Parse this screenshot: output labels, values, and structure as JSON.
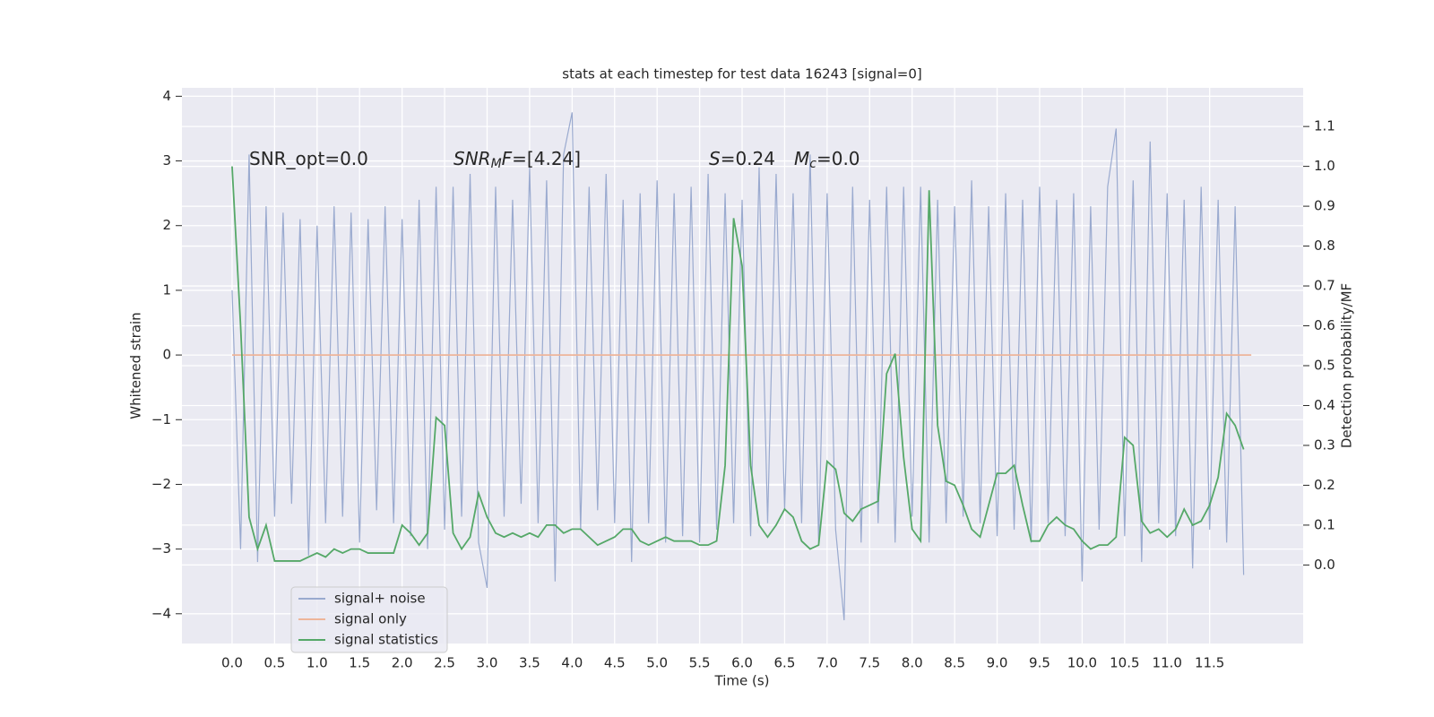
{
  "chart_data": {
    "type": "line",
    "title": "stats at each timestep for test data 16243 [signal=0]",
    "xlabel": "Time (s)",
    "ylabel": "Whitened strain",
    "y2label": "Detection probability/MF",
    "xlim": [
      -0.59,
      12.6
    ],
    "ylim": [
      -4.46,
      4.13
    ],
    "y2lim": [
      -0.197,
      1.197
    ],
    "xticks": [
      {
        "value": 0,
        "label": "0.0"
      },
      0.5,
      {
        "value": 1,
        "label": "1.0"
      },
      1.5,
      {
        "value": 2,
        "label": "2.0"
      },
      2.5,
      {
        "value": 3,
        "label": "3.0"
      },
      3.5,
      {
        "value": 4,
        "label": "4.0"
      },
      4.5,
      {
        "value": 5,
        "label": "5.0"
      },
      5.5,
      {
        "value": 6,
        "label": "6.0"
      },
      6.5,
      {
        "value": 7,
        "label": "7.0"
      },
      7.5,
      {
        "value": 8,
        "label": "8.0"
      },
      8.5,
      {
        "value": 9,
        "label": "9.0"
      },
      9.5,
      {
        "value": 10,
        "label": "10.0"
      },
      10.5,
      {
        "value": 11,
        "label": "11.0"
      },
      11.5
    ],
    "yticks": [
      {
        "value": -4,
        "label": "−4"
      },
      {
        "value": -3,
        "label": "−3"
      },
      {
        "value": -2,
        "label": "−2"
      },
      {
        "value": -1,
        "label": "−1"
      },
      0,
      1,
      2,
      3,
      4
    ],
    "y2ticks": [
      {
        "value": 0,
        "label": "0.0"
      },
      0.1,
      0.2,
      0.3,
      0.4,
      0.5,
      0.6,
      0.7,
      0.8,
      0.9,
      {
        "value": 1,
        "label": "1.0"
      },
      1.1
    ],
    "grid": true,
    "legend": "lower left",
    "annotations": [
      [
        {
          "text": "SNR_opt=0.0"
        }
      ],
      [
        {
          "text": "SNR",
          "italic": true
        },
        {
          "text": "M",
          "italic": true,
          "sub": true
        },
        {
          "text": "F",
          "italic": true
        },
        {
          "text": "=[4.24]"
        }
      ],
      [
        {
          "text": "S",
          "italic": true
        },
        {
          "text": "=0.24"
        }
      ],
      [
        {
          "text": "M",
          "italic": true
        },
        {
          "text": "c",
          "italic": true,
          "sub": true
        },
        {
          "text": "=0.0"
        }
      ]
    ],
    "series": [
      {
        "name": "signal+ noise",
        "color": "#9aaacf",
        "x": [
          0,
          0.1,
          0.2,
          0.3,
          0.4,
          0.5,
          0.6,
          0.7,
          0.8,
          0.9,
          1,
          1.1,
          1.2,
          1.3,
          1.4,
          1.5,
          1.6,
          1.7,
          1.8,
          1.9,
          2,
          2.1,
          2.2,
          2.3,
          2.4,
          2.5,
          2.6,
          2.7,
          2.8,
          2.9,
          3,
          3.1,
          3.2,
          3.3,
          3.4,
          3.5,
          3.6,
          3.7,
          3.8,
          3.9,
          4,
          4.1,
          4.2,
          4.3,
          4.4,
          4.5,
          4.6,
          4.7,
          4.8,
          4.9,
          5,
          5.1,
          5.2,
          5.3,
          5.4,
          5.5,
          5.6,
          5.7,
          5.8,
          5.9,
          6,
          6.1,
          6.2,
          6.3,
          6.4,
          6.5,
          6.6,
          6.7,
          6.8,
          6.9,
          7,
          7.1,
          7.2,
          7.3,
          7.4,
          7.5,
          7.6,
          7.7,
          7.8,
          7.9,
          8,
          8.1,
          8.2,
          8.3,
          8.4,
          8.5,
          8.6,
          8.7,
          8.8,
          8.9,
          9,
          9.1,
          9.2,
          9.3,
          9.4,
          9.5,
          9.6,
          9.7,
          9.8,
          9.9,
          10,
          10.1,
          10.2,
          10.3,
          10.4,
          10.5,
          10.6,
          10.7,
          10.8,
          10.9,
          11,
          11.1,
          11.2,
          11.3,
          11.4,
          11.5,
          11.6,
          11.7,
          11.8,
          11.9
        ],
        "values": [
          1.0,
          -3.0,
          3.1,
          -3.2,
          2.3,
          -2.5,
          2.2,
          -2.3,
          2.1,
          -3.1,
          2.0,
          -2.6,
          2.3,
          -2.5,
          2.2,
          -2.9,
          2.1,
          -2.4,
          2.3,
          -2.6,
          2.1,
          -2.8,
          2.4,
          -3.0,
          2.6,
          -2.7,
          2.6,
          -2.5,
          2.8,
          -2.9,
          -3.6,
          2.6,
          -2.5,
          2.4,
          -2.3,
          2.9,
          -2.6,
          2.7,
          -3.5,
          3.1,
          3.75,
          -2.7,
          2.6,
          -2.4,
          2.8,
          -2.6,
          2.4,
          -3.2,
          2.5,
          -2.6,
          2.7,
          -2.9,
          2.5,
          -2.8,
          2.6,
          -2.9,
          2.8,
          -2.7,
          2.5,
          -2.6,
          2.4,
          -2.8,
          2.9,
          -2.6,
          2.8,
          -2.4,
          2.5,
          -2.6,
          3.1,
          -2.9,
          2.5,
          -2.7,
          -4.1,
          2.6,
          -2.9,
          2.4,
          -2.6,
          2.6,
          -2.9,
          2.6,
          -2.5,
          2.6,
          -2.9,
          2.4,
          -2.6,
          2.3,
          -2.5,
          2.7,
          -2.6,
          2.3,
          -2.8,
          2.5,
          -2.7,
          2.4,
          -2.9,
          2.6,
          -2.6,
          2.4,
          -2.8,
          2.5,
          -3.5,
          2.3,
          -2.7,
          2.6,
          3.5,
          -2.8,
          2.7,
          -3.2,
          3.3,
          -2.6,
          2.5,
          -2.8,
          2.4,
          -3.3,
          2.6,
          -2.7,
          2.4,
          -2.9,
          2.3,
          -3.4
        ]
      },
      {
        "name": "signal only",
        "color": "#eeb59a",
        "x": [
          0,
          11.99
        ],
        "values": [
          0,
          0
        ]
      },
      {
        "name": "signal statistics",
        "color": "#55a868",
        "axis": "y2",
        "x": [
          0,
          0.1,
          0.2,
          0.3,
          0.4,
          0.5,
          0.6,
          0.7,
          0.8,
          0.9,
          1,
          1.1,
          1.2,
          1.3,
          1.4,
          1.5,
          1.6,
          1.7,
          1.8,
          1.9,
          2,
          2.1,
          2.2,
          2.3,
          2.4,
          2.5,
          2.6,
          2.7,
          2.8,
          2.9,
          3,
          3.1,
          3.2,
          3.3,
          3.4,
          3.5,
          3.6,
          3.7,
          3.8,
          3.9,
          4,
          4.1,
          4.2,
          4.3,
          4.4,
          4.5,
          4.6,
          4.7,
          4.8,
          4.9,
          5,
          5.1,
          5.2,
          5.3,
          5.4,
          5.5,
          5.6,
          5.7,
          5.8,
          5.9,
          6,
          6.1,
          6.2,
          6.3,
          6.4,
          6.5,
          6.6,
          6.7,
          6.8,
          6.9,
          7,
          7.1,
          7.2,
          7.3,
          7.4,
          7.5,
          7.6,
          7.7,
          7.8,
          7.9,
          8,
          8.1,
          8.2,
          8.3,
          8.4,
          8.5,
          8.6,
          8.7,
          8.8,
          8.9,
          9,
          9.1,
          9.2,
          9.3,
          9.4,
          9.5,
          9.6,
          9.7,
          9.8,
          9.9,
          10,
          10.1,
          10.2,
          10.3,
          10.4,
          10.5,
          10.6,
          10.7,
          10.8,
          10.9,
          11,
          11.1,
          11.2,
          11.3,
          11.4,
          11.5,
          11.6,
          11.7,
          11.8,
          11.9
        ],
        "values": [
          1.0,
          0.6,
          0.12,
          0.04,
          0.1,
          0.01,
          0.01,
          0.01,
          0.01,
          0.02,
          0.03,
          0.02,
          0.04,
          0.03,
          0.04,
          0.04,
          0.03,
          0.03,
          0.03,
          0.03,
          0.1,
          0.08,
          0.05,
          0.08,
          0.37,
          0.35,
          0.08,
          0.04,
          0.07,
          0.18,
          0.12,
          0.08,
          0.07,
          0.08,
          0.07,
          0.08,
          0.07,
          0.1,
          0.1,
          0.08,
          0.09,
          0.09,
          0.07,
          0.05,
          0.06,
          0.07,
          0.09,
          0.09,
          0.06,
          0.05,
          0.06,
          0.07,
          0.06,
          0.06,
          0.06,
          0.05,
          0.05,
          0.06,
          0.25,
          0.87,
          0.75,
          0.25,
          0.1,
          0.07,
          0.1,
          0.14,
          0.12,
          0.06,
          0.04,
          0.05,
          0.26,
          0.24,
          0.13,
          0.11,
          0.14,
          0.15,
          0.16,
          0.48,
          0.53,
          0.27,
          0.09,
          0.06,
          0.94,
          0.35,
          0.21,
          0.2,
          0.15,
          0.09,
          0.07,
          0.15,
          0.23,
          0.23,
          0.25,
          0.15,
          0.06,
          0.06,
          0.1,
          0.12,
          0.1,
          0.09,
          0.06,
          0.04,
          0.05,
          0.05,
          0.07,
          0.32,
          0.3,
          0.11,
          0.08,
          0.09,
          0.07,
          0.09,
          0.14,
          0.1,
          0.11,
          0.15,
          0.22,
          0.38,
          0.35,
          0.29
        ]
      }
    ]
  }
}
